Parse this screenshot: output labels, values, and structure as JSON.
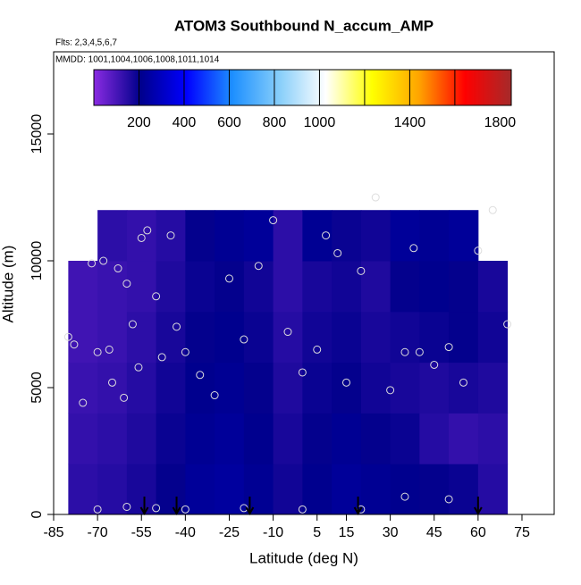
{
  "chart_data": {
    "type": "curtain",
    "title": "ATOM3 Southbound N_accum_AMP",
    "subtitle": "Flts: 2,3,4,5,6,7",
    "annotation": "MMDD: 1001,1004,1006,1008,1011,1014",
    "x_label": "Latitude (deg N)",
    "y_label": "Altitude (m)",
    "xlim": [
      -85,
      86
    ],
    "ylim": [
      0,
      18240
    ],
    "xticks": [
      -85,
      -70,
      -55,
      -40,
      -25,
      -10,
      5,
      15,
      30,
      45,
      60,
      75
    ],
    "yticks": [
      0,
      5000,
      10000,
      15000
    ],
    "lat_edges": [
      -80,
      -70,
      -60,
      -50,
      -40,
      -30,
      -20,
      -10,
      0,
      10,
      20,
      30,
      40,
      50,
      60,
      70
    ],
    "alt_edges": [
      0,
      2000,
      4000,
      6000,
      8000,
      10000,
      12000
    ],
    "values": [
      [
        140,
        150,
        170,
        200,
        230,
        240,
        220,
        180,
        210,
        230,
        220,
        210,
        200,
        190,
        150
      ],
      [
        130,
        140,
        160,
        190,
        220,
        230,
        210,
        170,
        200,
        220,
        200,
        190,
        150,
        130,
        140
      ],
      [
        120,
        130,
        150,
        180,
        210,
        220,
        200,
        160,
        190,
        200,
        180,
        170,
        160,
        170,
        160
      ],
      [
        110,
        120,
        140,
        170,
        200,
        210,
        190,
        150,
        180,
        190,
        170,
        180,
        190,
        200,
        180
      ],
      [
        110,
        120,
        130,
        160,
        190,
        200,
        180,
        140,
        170,
        180,
        160,
        200,
        210,
        200,
        170
      ],
      [
        null,
        140,
        130,
        150,
        200,
        220,
        230,
        140,
        220,
        190,
        180,
        230,
        220,
        230,
        null
      ]
    ],
    "colorbar_lim": [
      0,
      1850
    ],
    "colorbar_ticks": [
      200,
      400,
      600,
      800,
      1000,
      1400,
      1800
    ],
    "colorbar_breaks": [
      200,
      400,
      600,
      800,
      1000,
      1200,
      1400,
      1600
    ],
    "colors": [
      "#8a2be2",
      "#00008b",
      "#0000ff",
      "#1e90ff",
      "#87cefa",
      "#ffffff",
      "#ffff00",
      "#ffa500",
      "#ff0000",
      "#a52a2a"
    ],
    "points": {
      "x": [
        -80,
        -78,
        -75,
        -72,
        -70,
        -68,
        -66,
        -65,
        -63,
        -61,
        -60,
        -58,
        -56,
        -55,
        -53,
        -50,
        -48,
        -45,
        -43,
        -40,
        -35,
        -30,
        -25,
        -20,
        -15,
        -10,
        -5,
        0,
        5,
        8,
        12,
        15,
        20,
        25,
        30,
        35,
        38,
        40,
        45,
        50,
        55,
        60,
        65,
        70,
        -70,
        -60,
        -50,
        -40,
        -20,
        0,
        20,
        35,
        50
      ],
      "y": [
        7000,
        6700,
        4400,
        9900,
        6400,
        10000,
        6500,
        5200,
        9700,
        4600,
        9100,
        7500,
        5800,
        10900,
        11200,
        8600,
        6200,
        11000,
        7400,
        6400,
        5500,
        4700,
        9300,
        6900,
        9800,
        11600,
        7200,
        5600,
        6500,
        11000,
        10300,
        5200,
        9600,
        12500,
        4900,
        6400,
        10500,
        6400,
        5900,
        6600,
        5200,
        10400,
        12000,
        7500,
        200,
        300,
        250,
        200,
        250,
        200,
        200,
        700,
        600
      ]
    },
    "arrows_lat": [
      -54,
      -43,
      -18,
      19,
      60
    ]
  }
}
